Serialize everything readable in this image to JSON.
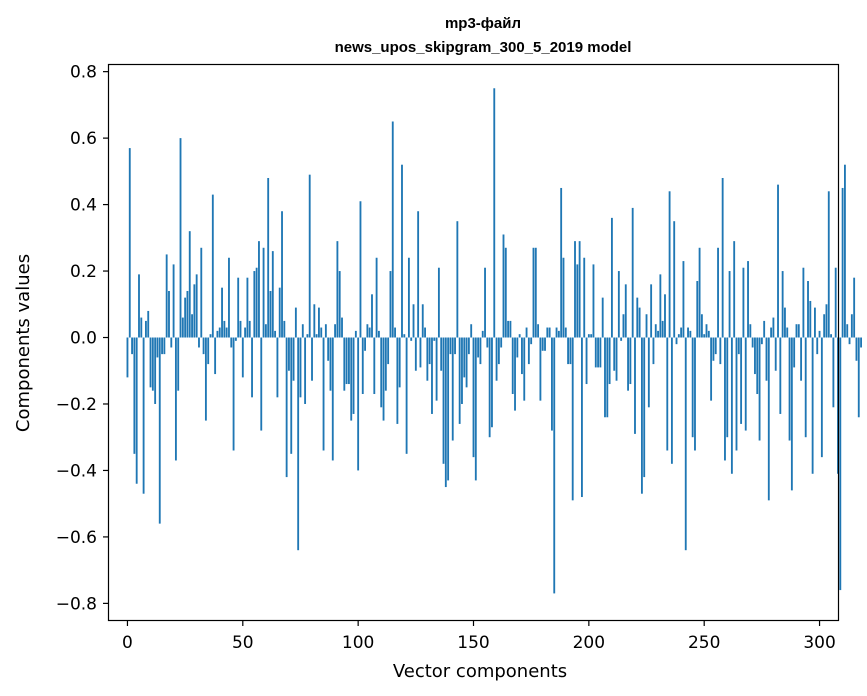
{
  "chart_data": {
    "type": "bar",
    "title_line1": "mp3-файл",
    "title_line2": "news_upos_skipgram_300_5_2019 model",
    "xlabel": "Vector components",
    "ylabel": "Components values",
    "xlim": [
      -8,
      308
    ],
    "ylim": [
      -0.85,
      0.82
    ],
    "xticks": [
      0,
      50,
      100,
      150,
      200,
      250,
      300
    ],
    "xtick_labels": [
      "0",
      "50",
      "100",
      "150",
      "200",
      "250",
      "300"
    ],
    "yticks": [
      0.8,
      0.6,
      0.4,
      0.2,
      0.0,
      -0.2,
      -0.4,
      -0.6,
      -0.8
    ],
    "ytick_labels": [
      "0.8",
      "0.6",
      "0.4",
      "0.2",
      "0.0",
      "−0.2",
      "−0.4",
      "−0.6",
      "−0.8"
    ],
    "bar_color": "#1f77b4",
    "series": [
      {
        "name": "vector",
        "x_start": 0,
        "values": [
          -0.12,
          0.57,
          -0.05,
          -0.35,
          -0.44,
          0.19,
          0.06,
          -0.47,
          0.05,
          0.08,
          -0.15,
          -0.16,
          -0.2,
          -0.06,
          -0.56,
          -0.05,
          -0.05,
          0.25,
          0.14,
          -0.03,
          0.22,
          -0.37,
          -0.16,
          0.6,
          0.06,
          0.12,
          0.14,
          0.32,
          0.07,
          0.16,
          0.19,
          -0.03,
          0.27,
          -0.05,
          -0.25,
          -0.08,
          0.01,
          0.43,
          -0.11,
          0.02,
          0.03,
          0.15,
          0.05,
          0.03,
          0.24,
          -0.03,
          -0.34,
          -0.01,
          0.18,
          0.05,
          -0.12,
          0.03,
          0.18,
          0.05,
          -0.18,
          0.2,
          0.21,
          0.29,
          -0.28,
          0.27,
          0.04,
          0.48,
          0.14,
          0.26,
          0.02,
          -0.18,
          0.15,
          0.38,
          0.05,
          -0.42,
          -0.1,
          -0.35,
          -0.13,
          0.09,
          -0.64,
          -0.18,
          0.04,
          -0.2,
          0.01,
          0.49,
          -0.13,
          0.1,
          0.01,
          0.09,
          0.03,
          -0.34,
          0.04,
          -0.07,
          -0.16,
          -0.37,
          0.04,
          0.29,
          0.2,
          0.06,
          -0.16,
          -0.14,
          -0.14,
          -0.25,
          -0.23,
          0.02,
          -0.4,
          0.41,
          -0.17,
          -0.04,
          0.04,
          0.03,
          0.13,
          -0.17,
          0.24,
          0.02,
          -0.21,
          -0.25,
          -0.16,
          -0.08,
          0.2,
          0.65,
          0.03,
          -0.26,
          -0.15,
          0.52,
          0.01,
          -0.35,
          0.24,
          -0.01,
          0.1,
          -0.1,
          0.38,
          -0.09,
          0.1,
          0.03,
          -0.13,
          -0.08,
          -0.23,
          -0.01,
          -0.19,
          0.21,
          -0.1,
          -0.38,
          -0.45,
          -0.43,
          -0.05,
          -0.31,
          -0.05,
          0.35,
          -0.26,
          -0.2,
          -0.12,
          -0.15,
          -0.05,
          0.04,
          -0.36,
          -0.43,
          -0.06,
          -0.08,
          0.02,
          0.21,
          -0.03,
          -0.3,
          -0.27,
          0.75,
          -0.13,
          -0.08,
          -0.03,
          0.31,
          0.27,
          0.05,
          0.05,
          -0.17,
          -0.22,
          -0.06,
          0.01,
          -0.11,
          -0.19,
          0.03,
          -0.08,
          -0.02,
          0.27,
          0.27,
          0.04,
          -0.19,
          -0.04,
          -0.04,
          0.03,
          0.03,
          -0.28,
          -0.77,
          0.03,
          0.02,
          0.45,
          0.24,
          0.03,
          -0.08,
          -0.08,
          -0.49,
          0.29,
          0.22,
          0.29,
          -0.48,
          0.24,
          -0.14,
          0.01,
          0.01,
          0.22,
          -0.09,
          -0.09,
          -0.09,
          0.12,
          -0.24,
          -0.24,
          -0.14,
          0.36,
          -0.1,
          -0.13,
          0.2,
          -0.01,
          0.07,
          0.16,
          -0.16,
          -0.14,
          0.39,
          -0.29,
          0.12,
          0.09,
          -0.47,
          -0.42,
          0.07,
          -0.21,
          0.16,
          -0.08,
          0.04,
          0.02,
          0.19,
          0.05,
          0.13,
          -0.34,
          0.44,
          -0.38,
          0.35,
          -0.02,
          0.01,
          0.03,
          0.23,
          -0.64,
          0.03,
          0.02,
          -0.3,
          -0.34,
          0.17,
          0.27,
          0.07,
          0.01,
          0.04,
          0.02,
          -0.19,
          -0.07,
          -0.05,
          0.27,
          -0.08,
          0.48,
          -0.37,
          -0.3,
          0.2,
          -0.41,
          0.29,
          -0.34,
          -0.05,
          -0.26,
          0.21,
          -0.28,
          0.23,
          0.04,
          -0.03,
          -0.11,
          -0.17,
          -0.31,
          -0.02,
          0.05,
          -0.13,
          -0.49,
          0.03,
          0.06,
          -0.1,
          0.46,
          -0.23,
          0.2,
          0.09,
          0.03,
          -0.31,
          -0.46,
          -0.09,
          0.04,
          0.04,
          -0.13,
          0.21,
          -0.3,
          0.17,
          0.11,
          -0.41,
          0.09,
          -0.05,
          0.02,
          -0.36,
          0.07,
          0.1,
          0.44,
          0.01,
          -0.21,
          0.21,
          -0.41,
          -0.76,
          0.45,
          0.52,
          0.04,
          -0.02,
          0.07,
          0.18,
          -0.07,
          -0.24,
          -0.03
        ]
      }
    ]
  }
}
